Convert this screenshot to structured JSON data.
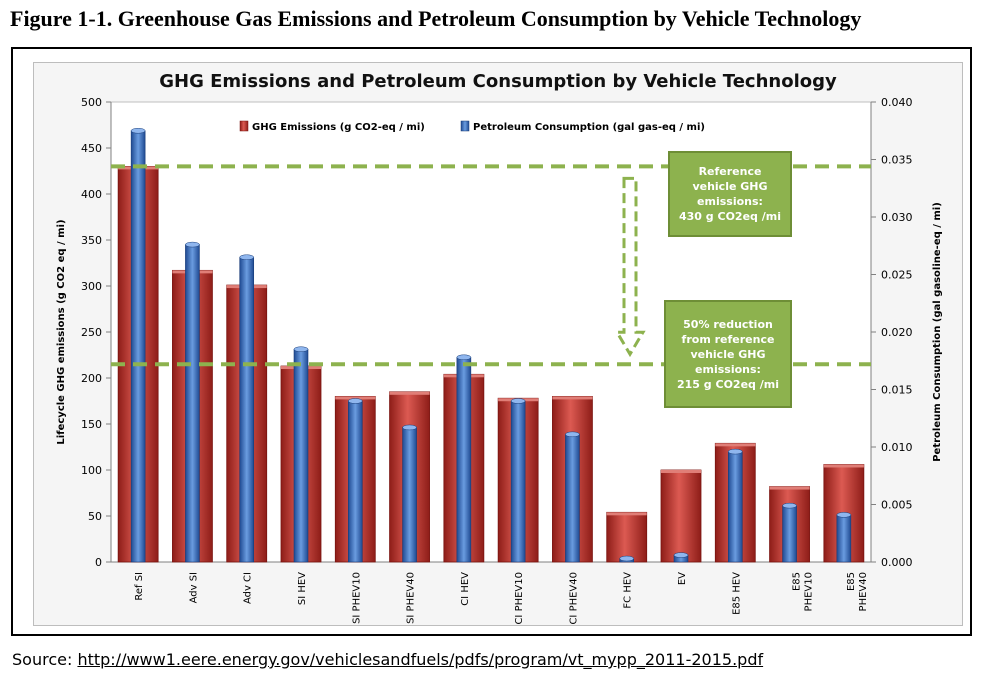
{
  "figure_title": "Figure 1-1. Greenhouse Gas Emissions and Petroleum Consumption by Vehicle Technology",
  "source": {
    "label": "Source: ",
    "link_text": "http://www1.eere.energy.gov/vehiclesandfuels/pdfs/program/vt_mypp_2011-2015.pdf"
  },
  "callouts": {
    "reference": "Reference\nvehicle GHG\nemissions:\n430 g CO2eq /mi",
    "reduction": "50% reduction\nfrom reference\nvehicle GHG\nemissions:\n215 g CO2eq /mi"
  },
  "colors": {
    "ghg_bar": "#c0312b",
    "petro_bar": "#3c70c4",
    "reference_line": "#8db24e",
    "callout_bg": "#8db24e"
  },
  "chart_data": {
    "type": "bar",
    "title": "GHG Emissions and Petroleum Consumption by Vehicle Technology",
    "categories": [
      "Ref SI",
      "Adv SI",
      "Adv CI",
      "SI HEV",
      "SI PHEV10",
      "SI PHEV40",
      "CI HEV",
      "CI PHEV10",
      "CI PHEV40",
      "FC HEV",
      "EV",
      "E85 HEV",
      "E85\nPHEV10",
      "E85\nPHEV40"
    ],
    "series": [
      {
        "name": "GHG Emissions  (g CO2-eq / mi)",
        "axis": "left",
        "values": [
          430,
          317,
          301,
          213,
          180,
          185,
          204,
          178,
          180,
          54,
          100,
          129,
          82,
          106
        ]
      },
      {
        "name": "Petroleum Consumption  (gal gas-eq / mi)",
        "axis": "right",
        "values": [
          0.0375,
          0.0276,
          0.0265,
          0.0185,
          0.014,
          0.0117,
          0.0178,
          0.014,
          0.0111,
          0.0003,
          0.0006,
          0.0096,
          0.0049,
          0.0041
        ]
      }
    ],
    "ylabel": "Lifecycle GHG emissions (g CO2 eq / mi)",
    "y2label": "Petroleum Consumption (gal gasoline-eq / mi)",
    "ylim": [
      0,
      500
    ],
    "yticks": [
      0,
      50,
      100,
      150,
      200,
      250,
      300,
      350,
      400,
      450,
      500
    ],
    "y2lim": [
      0,
      0.04
    ],
    "y2ticks": [
      "0.000",
      "0.005",
      "0.010",
      "0.015",
      "0.020",
      "0.025",
      "0.030",
      "0.035",
      "0.040"
    ],
    "reference_lines": [
      430,
      215
    ],
    "legend_position": "top",
    "grid": false
  }
}
